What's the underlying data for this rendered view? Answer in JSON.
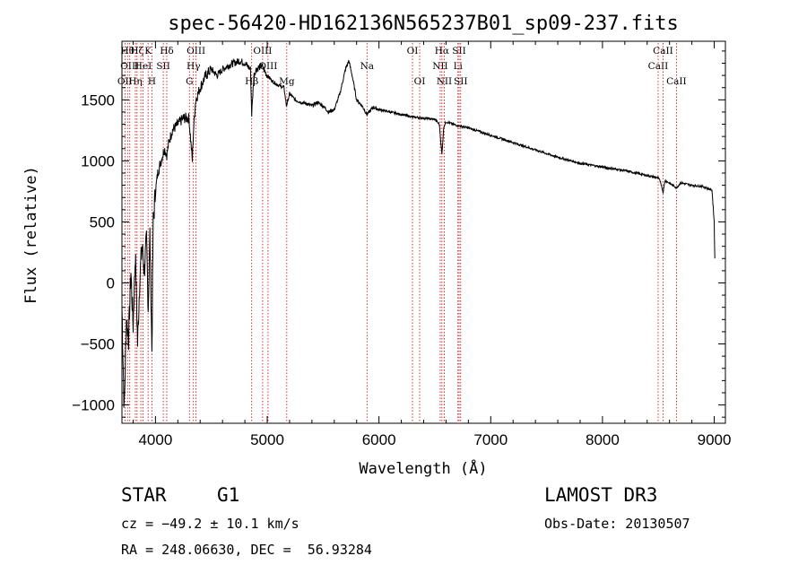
{
  "chart_data": {
    "type": "line",
    "title": "spec-56420-HD162136N565237B01_sp09-237.fits",
    "xlabel": "Wavelength (Å)",
    "ylabel": "Flux (relative)",
    "xlim": [
      3700,
      9100
    ],
    "ylim": [
      -1150,
      1980
    ],
    "x_ticks": [
      4000,
      5000,
      6000,
      7000,
      8000,
      9000
    ],
    "y_ticks": [
      -1000,
      -500,
      0,
      500,
      1000,
      1500
    ],
    "x_tick_labels": [
      "4000",
      "5000",
      "6000",
      "7000",
      "8000",
      "9000"
    ],
    "y_tick_labels": [
      "−1000",
      "−500",
      "0",
      "500",
      "1000",
      "1500"
    ],
    "series": [
      {
        "name": "spectrum",
        "x": [
          3700,
          3720,
          3740,
          3760,
          3780,
          3800,
          3820,
          3840,
          3860,
          3880,
          3900,
          3920,
          3935,
          3950,
          3968,
          3980,
          4000,
          4020,
          4050,
          4080,
          4101,
          4120,
          4150,
          4200,
          4250,
          4300,
          4330,
          4340,
          4360,
          4400,
          4450,
          4500,
          4550,
          4600,
          4650,
          4700,
          4750,
          4800,
          4850,
          4861,
          4880,
          4900,
          4950,
          5000,
          5050,
          5100,
          5150,
          5172,
          5200,
          5250,
          5300,
          5350,
          5400,
          5450,
          5500,
          5550,
          5600,
          5650,
          5700,
          5730,
          5760,
          5800,
          5850,
          5893,
          5950,
          6000,
          6100,
          6200,
          6300,
          6400,
          6500,
          6540,
          6563,
          6580,
          6600,
          6700,
          6800,
          6900,
          7000,
          7200,
          7400,
          7600,
          7800,
          8000,
          8200,
          8400,
          8498,
          8520,
          8542,
          8560,
          8662,
          8700,
          8800,
          8900,
          8950,
          8980,
          9000,
          9005
        ],
        "y": [
          -200,
          -1050,
          -300,
          -450,
          100,
          -350,
          250,
          -500,
          50,
          300,
          100,
          350,
          -200,
          400,
          -550,
          500,
          750,
          900,
          1000,
          1100,
          1050,
          1150,
          1250,
          1300,
          1350,
          1350,
          1000,
          1250,
          1500,
          1600,
          1700,
          1750,
          1700,
          1750,
          1780,
          1800,
          1820,
          1800,
          1750,
          1380,
          1700,
          1750,
          1780,
          1700,
          1650,
          1620,
          1600,
          1450,
          1550,
          1500,
          1480,
          1470,
          1450,
          1480,
          1450,
          1400,
          1420,
          1550,
          1750,
          1820,
          1700,
          1500,
          1450,
          1380,
          1440,
          1420,
          1400,
          1380,
          1360,
          1350,
          1340,
          1300,
          1050,
          1280,
          1320,
          1290,
          1270,
          1240,
          1210,
          1150,
          1090,
          1030,
          980,
          950,
          920,
          880,
          860,
          830,
          740,
          840,
          780,
          820,
          800,
          790,
          770,
          760,
          500,
          200
        ]
      }
    ],
    "spectral_lines": [
      {
        "wl": 3727,
        "label": "OII",
        "row": 2
      },
      {
        "wl": 3750,
        "label": "Hθ",
        "row": 0
      },
      {
        "wl": 3770,
        "label": "OIII",
        "row": 1
      },
      {
        "wl": 3820,
        "label": "Hη",
        "row": 2
      },
      {
        "wl": 3835,
        "label": "Hζ",
        "row": 0
      },
      {
        "wl": 3869,
        "label": "",
        "row": 0
      },
      {
        "wl": 3889,
        "label": "HeI",
        "row": 1
      },
      {
        "wl": 3934,
        "label": "K",
        "row": 0
      },
      {
        "wl": 3968,
        "label": "H",
        "row": 2
      },
      {
        "wl": 4070,
        "label": "SII",
        "row": 1
      },
      {
        "wl": 4101,
        "label": "Hδ",
        "row": 0
      },
      {
        "wl": 4304,
        "label": "G",
        "row": 2
      },
      {
        "wl": 4340,
        "label": "Hγ",
        "row": 1
      },
      {
        "wl": 4363,
        "label": "OIII",
        "row": 0
      },
      {
        "wl": 4861,
        "label": "Hβ",
        "row": 2
      },
      {
        "wl": 4959,
        "label": "OIII",
        "row": 0
      },
      {
        "wl": 5007,
        "label": "OIII",
        "row": 1
      },
      {
        "wl": 5175,
        "label": "Mg",
        "row": 2
      },
      {
        "wl": 5893,
        "label": "Na",
        "row": 1
      },
      {
        "wl": 6300,
        "label": "OI",
        "row": 0
      },
      {
        "wl": 6364,
        "label": "OI",
        "row": 2
      },
      {
        "wl": 6548,
        "label": "NII",
        "row": 1
      },
      {
        "wl": 6563,
        "label": "Hα",
        "row": 0
      },
      {
        "wl": 6584,
        "label": "NII",
        "row": 2
      },
      {
        "wl": 6707,
        "label": "Li",
        "row": 1
      },
      {
        "wl": 6717,
        "label": "SII",
        "row": 0
      },
      {
        "wl": 6731,
        "label": "SII",
        "row": 2
      },
      {
        "wl": 8498,
        "label": "CaII",
        "row": 1
      },
      {
        "wl": 8542,
        "label": "CaII",
        "row": 0
      },
      {
        "wl": 8662,
        "label": "CaII",
        "row": 2
      }
    ]
  },
  "info": {
    "object_type": "STAR",
    "subclass": "G1",
    "survey": "LAMOST DR3",
    "redshift": "cz = −49.2 ± 10.1 km/s",
    "obs_date": "Obs-Date: 20130507",
    "coords": "RA = 248.06630, DEC =  56.93284"
  }
}
